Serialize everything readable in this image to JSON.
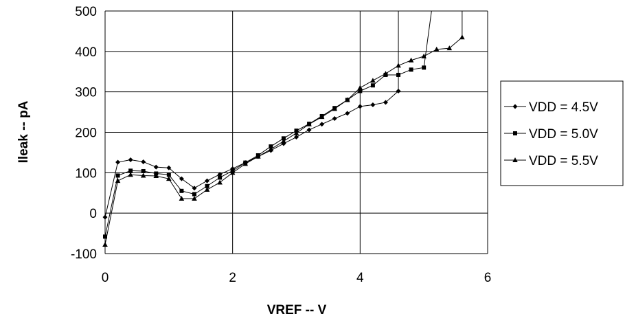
{
  "chart_data": {
    "type": "line",
    "title": "",
    "xlabel": "VREF -- V",
    "ylabel": "Ileak -- pA",
    "xlim": [
      0,
      6
    ],
    "ylim": [
      -100,
      500
    ],
    "x_ticks": [
      0,
      2,
      4,
      6
    ],
    "y_ticks": [
      -100,
      0,
      100,
      200,
      300,
      400,
      500
    ],
    "grid": true,
    "legend_position": "right",
    "colors": {
      "series": "#000000",
      "grid": "#000000",
      "background": "#ffffff"
    },
    "series": [
      {
        "name": "VDD = 4.5V",
        "marker": "diamond",
        "x": [
          0,
          0.2,
          0.4,
          0.6,
          0.8,
          1.0,
          1.2,
          1.4,
          1.6,
          1.8,
          2.0,
          2.2,
          2.4,
          2.6,
          2.8,
          3.0,
          3.2,
          3.4,
          3.6,
          3.8,
          4.0,
          4.2,
          4.4,
          4.6,
          4.6
        ],
        "values": [
          -10,
          126,
          132,
          127,
          114,
          112,
          85,
          62,
          80,
          96,
          110,
          125,
          140,
          155,
          172,
          188,
          206,
          220,
          234,
          247,
          264,
          268,
          274,
          302,
          500
        ]
      },
      {
        "name": "VDD = 5.0V",
        "marker": "square",
        "x": [
          0,
          0.2,
          0.4,
          0.6,
          0.8,
          1.0,
          1.2,
          1.4,
          1.6,
          1.8,
          2.0,
          2.2,
          2.4,
          2.6,
          2.8,
          3.0,
          3.2,
          3.4,
          3.6,
          3.8,
          4.0,
          4.2,
          4.4,
          4.6,
          4.8,
          5.0,
          5.12
        ],
        "values": [
          -58,
          93,
          105,
          104,
          98,
          95,
          55,
          47,
          67,
          88,
          105,
          125,
          143,
          165,
          185,
          204,
          221,
          240,
          260,
          280,
          302,
          316,
          342,
          342,
          355,
          360,
          500
        ]
      },
      {
        "name": "VDD = 5.5V",
        "marker": "triangle",
        "x": [
          0,
          0.2,
          0.4,
          0.6,
          0.8,
          1.0,
          1.2,
          1.4,
          1.6,
          1.8,
          2.0,
          2.2,
          2.4,
          2.6,
          2.8,
          3.0,
          3.2,
          3.4,
          3.6,
          3.8,
          4.0,
          4.2,
          4.4,
          4.6,
          4.8,
          5.0,
          5.2,
          5.4,
          5.6,
          5.6
        ],
        "values": [
          -78,
          80,
          95,
          93,
          92,
          85,
          36,
          36,
          58,
          76,
          100,
          122,
          140,
          158,
          178,
          198,
          220,
          238,
          258,
          280,
          310,
          328,
          345,
          365,
          378,
          388,
          405,
          408,
          435,
          500
        ]
      }
    ]
  }
}
